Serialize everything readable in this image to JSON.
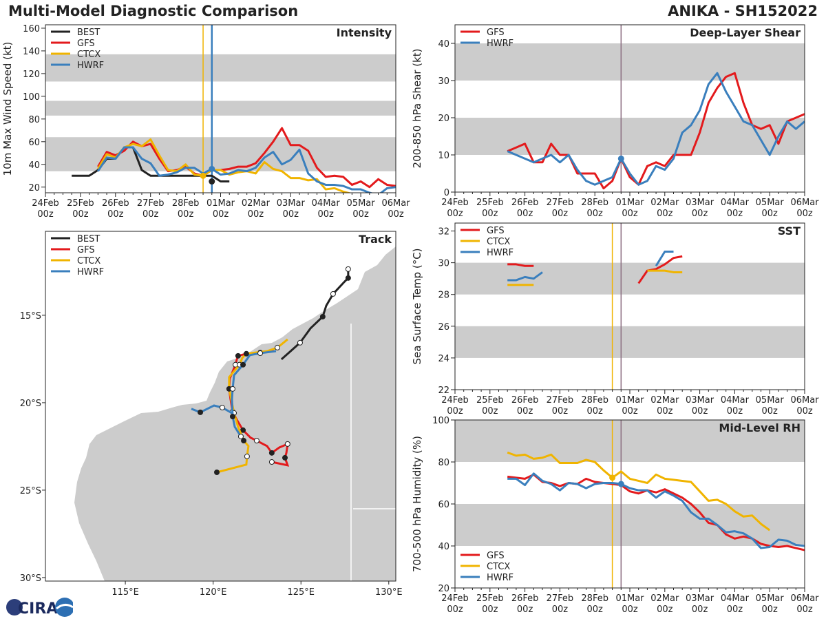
{
  "header": {
    "title": "Multi-Model Diagnostic Comparison",
    "storm": "ANIKA - SH152022"
  },
  "colors": {
    "BEST": "#222222",
    "GFS": "#e31a1c",
    "CTCX": "#f0b400",
    "HWRF": "#3a7fbd",
    "band": "#cccccc",
    "land": "#cccccc",
    "init_line": "#8b6d80"
  },
  "logo": {
    "text": "CIRA"
  },
  "chart_data": [
    {
      "id": "intensity",
      "type": "line",
      "title": "Intensity",
      "ylabel": "10m Max Wind Speed (kt)",
      "xlim": [
        "2022-02-24T00:00Z",
        "2022-03-06T00:00Z"
      ],
      "ylim": [
        15,
        163
      ],
      "yticks": [
        20,
        40,
        60,
        80,
        100,
        120,
        140,
        160
      ],
      "xticks": [
        "24Feb\n00z",
        "25Feb\n00z",
        "26Feb\n00z",
        "27Feb\n00z",
        "28Feb\n00z",
        "01Mar\n00z",
        "02Mar\n00z",
        "03Mar\n00z",
        "04Mar\n00z",
        "05Mar\n00z",
        "06Mar\n00z"
      ],
      "bands": [
        [
          34,
          64
        ],
        [
          83,
          96
        ],
        [
          113,
          137
        ]
      ],
      "legend": [
        "BEST",
        "GFS",
        "CTCX",
        "HWRF"
      ],
      "legend_placement": "top-left",
      "vlines": [
        {
          "time": "2022-02-28T12:00Z",
          "color": "CTCX"
        },
        {
          "time": "2022-02-28T18:00Z",
          "color": "HWRF"
        }
      ],
      "markers": [
        {
          "series": "BEST",
          "time": "2022-02-28T18:00Z",
          "value": 25
        },
        {
          "series": "HWRF",
          "time": "2022-02-28T18:00Z",
          "value": 36
        },
        {
          "series": "CTCX",
          "time": "2022-02-28T12:00Z",
          "value": 30
        }
      ],
      "series": [
        {
          "name": "BEST",
          "start": "2022-02-24T18:00Z",
          "interval_hours": 6,
          "values": [
            30,
            30,
            30,
            35,
            45,
            45,
            55,
            55,
            35,
            30,
            30,
            30,
            30,
            30,
            30,
            30,
            30,
            25,
            25
          ]
        },
        {
          "name": "GFS",
          "start": "2022-02-25T12:00Z",
          "interval_hours": 6,
          "values": [
            38,
            51,
            48,
            52,
            60,
            56,
            58,
            45,
            34,
            35,
            38,
            32,
            30,
            35,
            35,
            36,
            38,
            38,
            41,
            50,
            60,
            72,
            57,
            57,
            52,
            37,
            29,
            30,
            29,
            22,
            25,
            20,
            27,
            22,
            21
          ]
        },
        {
          "name": "CTCX",
          "start": "2022-02-25T12:00Z",
          "interval_hours": 6,
          "values": [
            36,
            49,
            46,
            55,
            58,
            56,
            62,
            48,
            35,
            34,
            40,
            31,
            30,
            35,
            35,
            31,
            33,
            34,
            32,
            42,
            36,
            34,
            28,
            28,
            26,
            27,
            18,
            19,
            16,
            14
          ]
        },
        {
          "name": "HWRF",
          "start": "2022-02-25T12:00Z",
          "interval_hours": 6,
          "values": [
            34,
            46,
            45,
            55,
            55,
            45,
            41,
            30,
            31,
            33,
            37,
            37,
            32,
            36,
            31,
            32,
            35,
            34,
            37,
            46,
            51,
            40,
            44,
            53,
            32,
            25,
            22,
            22,
            21,
            18,
            18,
            15,
            13,
            19,
            20
          ]
        }
      ]
    },
    {
      "id": "shear",
      "type": "line",
      "title": "Deep-Layer Shear",
      "ylabel": "200-850 hPa Shear (kt)",
      "xlim": [
        "2022-02-24T00:00Z",
        "2022-03-06T00:00Z"
      ],
      "ylim": [
        0,
        45
      ],
      "yticks": [
        0,
        10,
        20,
        30,
        40
      ],
      "xticks": [
        "24Feb\n00z",
        "25Feb\n00z",
        "26Feb\n00z",
        "27Feb\n00z",
        "28Feb\n00z",
        "01Mar\n00z",
        "02Mar\n00z",
        "03Mar\n00z",
        "04Mar\n00z",
        "05Mar\n00z",
        "06Mar\n00z"
      ],
      "bands": [
        [
          10,
          20
        ],
        [
          30,
          40
        ]
      ],
      "legend": [
        "GFS",
        "HWRF"
      ],
      "legend_placement": "top-left",
      "vlines": [
        {
          "time": "2022-02-28T18:00Z",
          "color": "init_line"
        }
      ],
      "markers": [
        {
          "series": "HWRF",
          "time": "2022-02-28T18:00Z",
          "value": 9
        }
      ],
      "series": [
        {
          "name": "GFS",
          "start": "2022-02-25T12:00Z",
          "interval_hours": 6,
          "values": [
            11,
            12,
            13,
            8,
            8,
            13,
            10,
            10,
            5,
            5,
            5,
            1,
            3,
            9,
            4,
            2,
            7,
            8,
            7,
            10,
            10,
            10,
            16,
            24,
            28,
            31,
            32,
            24,
            18,
            17,
            18,
            13,
            19,
            20,
            21
          ]
        },
        {
          "name": "HWRF",
          "start": "2022-02-25T12:00Z",
          "interval_hours": 6,
          "values": [
            11,
            10,
            9,
            8,
            9,
            10,
            8,
            10,
            6,
            3,
            2,
            3,
            4,
            9,
            5,
            2,
            3,
            7,
            6,
            9,
            16,
            18,
            22,
            29,
            32,
            27,
            23,
            19,
            18,
            14,
            10,
            15,
            19,
            17,
            19
          ]
        }
      ]
    },
    {
      "id": "sst",
      "type": "line",
      "title": "SST",
      "ylabel": "Sea Surface Temp (°C)",
      "xlim": [
        "2022-02-24T00:00Z",
        "2022-03-06T00:00Z"
      ],
      "ylim": [
        22,
        32.5
      ],
      "yticks": [
        22,
        24,
        26,
        28,
        30,
        32
      ],
      "xticks": [
        "24Feb\n00z",
        "25Feb\n00z",
        "26Feb\n00z",
        "27Feb\n00z",
        "28Feb\n00z",
        "01Mar\n00z",
        "02Mar\n00z",
        "03Mar\n00z",
        "04Mar\n00z",
        "05Mar\n00z",
        "06Mar\n00z"
      ],
      "bands": [
        [
          24,
          26
        ],
        [
          28,
          30
        ]
      ],
      "legend": [
        "GFS",
        "CTCX",
        "HWRF"
      ],
      "legend_placement": "top-left",
      "vlines": [
        {
          "time": "2022-02-28T12:00Z",
          "color": "CTCX"
        },
        {
          "time": "2022-02-28T18:00Z",
          "color": "init_line"
        }
      ],
      "markers": [],
      "series": [
        {
          "name": "GFS",
          "start": "2022-02-25T12:00Z",
          "interval_hours": 6,
          "values": [
            29.9,
            29.9,
            29.8,
            29.8,
            null,
            null,
            null,
            null,
            null,
            null,
            null,
            null,
            null,
            null,
            null,
            28.7,
            29.5,
            29.6,
            29.9,
            30.3,
            30.4
          ]
        },
        {
          "name": "CTCX",
          "start": "2022-02-25T12:00Z",
          "interval_hours": 6,
          "values": [
            28.6,
            28.6,
            28.6,
            28.6,
            null,
            null,
            null,
            null,
            null,
            null,
            null,
            null,
            null,
            null,
            null,
            null,
            29.5,
            29.5,
            29.5,
            29.4,
            29.4
          ]
        },
        {
          "name": "HWRF",
          "start": "2022-02-25T12:00Z",
          "interval_hours": 6,
          "values": [
            28.9,
            28.9,
            29.1,
            29.0,
            29.4,
            null,
            null,
            null,
            null,
            null,
            null,
            null,
            null,
            null,
            null,
            null,
            null,
            29.8,
            30.7,
            30.7
          ]
        }
      ]
    },
    {
      "id": "rh",
      "type": "line",
      "title": "Mid-Level RH",
      "ylabel": "700-500 hPa Humidity (%)",
      "xlim": [
        "2022-02-24T00:00Z",
        "2022-03-06T00:00Z"
      ],
      "ylim": [
        20,
        100
      ],
      "yticks": [
        20,
        40,
        60,
        80,
        100
      ],
      "xticks": [
        "24Feb\n00z",
        "25Feb\n00z",
        "26Feb\n00z",
        "27Feb\n00z",
        "28Feb\n00z",
        "01Mar\n00z",
        "02Mar\n00z",
        "03Mar\n00z",
        "04Mar\n00z",
        "05Mar\n00z",
        "06Mar\n00z"
      ],
      "bands": [
        [
          40,
          60
        ],
        [
          80,
          100
        ]
      ],
      "legend": [
        "GFS",
        "CTCX",
        "HWRF"
      ],
      "legend_placement": "bottom-left",
      "vlines": [
        {
          "time": "2022-02-28T12:00Z",
          "color": "CTCX"
        },
        {
          "time": "2022-02-28T18:00Z",
          "color": "init_line"
        }
      ],
      "markers": [
        {
          "series": "CTCX",
          "time": "2022-02-28T12:00Z",
          "value": 72.5
        },
        {
          "series": "HWRF",
          "time": "2022-02-28T18:00Z",
          "value": 69.5
        }
      ],
      "series": [
        {
          "name": "GFS",
          "start": "2022-02-25T12:00Z",
          "interval_hours": 6,
          "values": [
            73,
            72.5,
            72,
            74,
            70.5,
            70,
            68.5,
            70,
            69.5,
            72,
            70.5,
            70,
            69.5,
            69,
            66,
            65,
            66.5,
            65.5,
            67,
            65,
            63,
            60,
            56,
            51,
            50,
            45.5,
            43.5,
            44.5,
            43.5,
            41,
            40,
            39.5,
            40,
            39,
            38
          ]
        },
        {
          "name": "CTCX",
          "start": "2022-02-25T12:00Z",
          "interval_hours": 6,
          "values": [
            84.5,
            83,
            83.5,
            81.5,
            82,
            83.5,
            79.5,
            79.5,
            79.5,
            81,
            80,
            76,
            72.5,
            75.5,
            72,
            71,
            70,
            74,
            72,
            71.5,
            71,
            70.5,
            66,
            61.5,
            62,
            60,
            56.5,
            54,
            54.5,
            50.5,
            47.5
          ]
        },
        {
          "name": "HWRF",
          "start": "2022-02-25T12:00Z",
          "interval_hours": 6,
          "values": [
            72,
            72,
            69,
            74.5,
            71,
            69.5,
            66.5,
            70,
            69.5,
            67.5,
            69.5,
            70,
            70,
            69.5,
            67.5,
            66.5,
            66.5,
            63,
            66,
            64,
            61.5,
            56,
            53,
            53,
            50,
            46.5,
            47,
            46,
            43.5,
            39,
            39.5,
            43,
            42.5,
            40.5,
            40
          ]
        }
      ]
    },
    {
      "id": "track",
      "type": "line",
      "title": "Track",
      "xlim": [
        110.45,
        130.4
      ],
      "ylim": [
        -10.2,
        -30.2
      ],
      "xticks": [
        {
          "value": 115,
          "label": "115°E"
        },
        {
          "value": 120,
          "label": "120°E"
        },
        {
          "value": 125,
          "label": "125°E"
        },
        {
          "value": 130,
          "label": "130°E"
        }
      ],
      "yticks": [
        {
          "value": -15,
          "label": "15°S"
        },
        {
          "value": -20,
          "label": "20°S"
        },
        {
          "value": -25,
          "label": "25°S"
        },
        {
          "value": -30,
          "label": "30°S"
        }
      ],
      "legend": [
        "BEST",
        "GFS",
        "CTCX",
        "HWRF"
      ],
      "legend_placement": "top-left",
      "series": [
        {
          "name": "BEST",
          "segments": [
            [
              [
                123.89,
                -17.52
              ],
              [
                124.95,
                -16.57
              ],
              [
                125.54,
                -15.75
              ],
              [
                126.24,
                -15.08
              ],
              [
                126.44,
                -14.45
              ],
              [
                126.83,
                -13.78
              ],
              [
                127.49,
                -13.07
              ],
              [
                127.69,
                -12.87
              ],
              [
                127.69,
                -12.6
              ],
              [
                127.69,
                -12.36
              ]
            ]
          ]
        },
        {
          "name": "GFS",
          "segments": [
            [
              [
                123.46,
                -17.05
              ],
              [
                122.68,
                -17.13
              ],
              [
                121.89,
                -17.2
              ],
              [
                121.42,
                -17.32
              ],
              [
                121.35,
                -17.52
              ],
              [
                121.27,
                -17.83
              ],
              [
                120.95,
                -18.62
              ],
              [
                120.91,
                -19.21
              ],
              [
                120.99,
                -19.8
              ],
              [
                121.11,
                -20.51
              ],
              [
                121.35,
                -20.98
              ],
              [
                121.7,
                -21.57
              ],
              [
                122.13,
                -22.0
              ],
              [
                122.48,
                -22.17
              ],
              [
                123.07,
                -22.48
              ],
              [
                123.34,
                -22.87
              ],
              [
                123.77,
                -22.56
              ],
              [
                124.24,
                -22.36
              ],
              [
                124.17,
                -22.87
              ],
              [
                124.09,
                -23.15
              ],
              [
                124.24,
                -23.58
              ],
              [
                123.34,
                -23.39
              ]
            ]
          ]
        },
        {
          "name": "CTCX",
          "segments": [
            [
              [
                124.24,
                -16.38
              ],
              [
                123.66,
                -16.85
              ],
              [
                123.07,
                -17.05
              ],
              [
                121.89,
                -17.2
              ],
              [
                121.66,
                -17.44
              ],
              [
                121.5,
                -17.83
              ],
              [
                120.91,
                -18.54
              ],
              [
                120.91,
                -19.21
              ],
              [
                121.03,
                -19.8
              ],
              [
                121.19,
                -20.59
              ],
              [
                121.42,
                -21.38
              ],
              [
                121.74,
                -22.17
              ],
              [
                122.01,
                -22.48
              ],
              [
                121.93,
                -23.07
              ],
              [
                121.89,
                -23.54
              ],
              [
                120.21,
                -23.98
              ]
            ]
          ]
        },
        {
          "name": "HWRF",
          "segments": [
            [
              [
                123.58,
                -17.05
              ],
              [
                122.68,
                -17.17
              ],
              [
                122.09,
                -17.28
              ],
              [
                121.7,
                -17.83
              ],
              [
                121.19,
                -18.43
              ],
              [
                121.11,
                -19.21
              ],
              [
                121.07,
                -19.8
              ],
              [
                121.11,
                -20.79
              ],
              [
                121.23,
                -21.38
              ],
              [
                121.58,
                -21.93
              ]
            ],
            [
              [
                121.07,
                -20.59
              ],
              [
                120.52,
                -20.28
              ],
              [
                120.05,
                -20.16
              ],
              [
                119.27,
                -20.55
              ],
              [
                118.76,
                -20.35
              ]
            ]
          ]
        }
      ]
    }
  ]
}
